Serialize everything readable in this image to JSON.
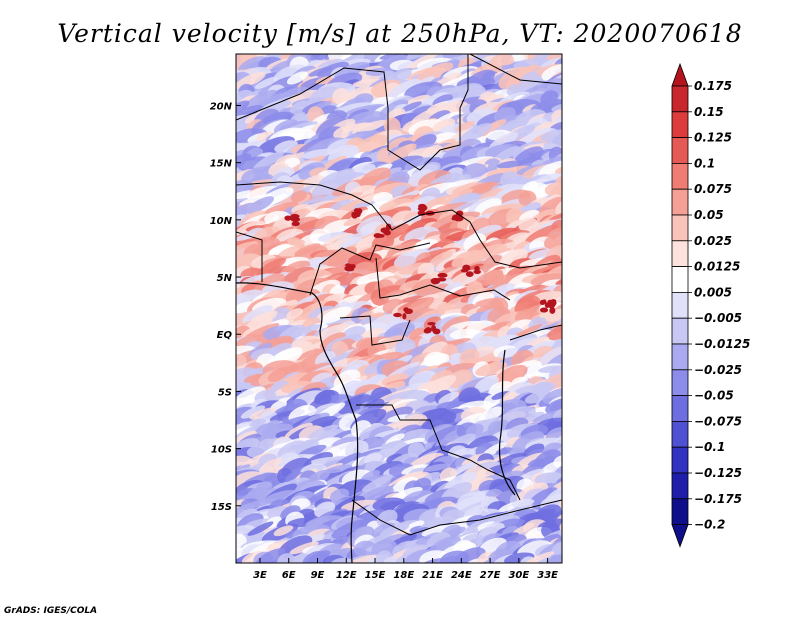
{
  "chart_data": {
    "type": "heatmap",
    "title": "Vertical velocity [m/s] at 250hPa, VT: 2020070618",
    "variable": "Vertical velocity",
    "units": "m/s",
    "level": "250hPa",
    "valid_time": "2020070618",
    "x_axis": {
      "ticks": [
        3,
        6,
        9,
        12,
        15,
        18,
        21,
        24,
        27,
        30,
        33
      ],
      "tick_labels": [
        "3E",
        "6E",
        "9E",
        "12E",
        "15E",
        "18E",
        "21E",
        "24E",
        "27E",
        "30E",
        "33E"
      ],
      "range": [
        0.5,
        34.5
      ]
    },
    "y_axis": {
      "ticks": [
        20,
        15,
        10,
        5,
        0,
        -5,
        -10,
        -15
      ],
      "tick_labels": [
        "20N",
        "15N",
        "10N",
        "5N",
        "EQ",
        "5S",
        "10S",
        "15S"
      ],
      "range": [
        -20,
        24.5
      ]
    },
    "colorbar": {
      "levels": [
        0.175,
        0.15,
        0.125,
        0.1,
        0.075,
        0.05,
        0.025,
        0.0125,
        0.005,
        -0.005,
        -0.0125,
        -0.025,
        -0.05,
        -0.075,
        -0.1,
        -0.125,
        -0.175,
        -0.2
      ],
      "labels": [
        "0.175",
        "0.15",
        "0.125",
        "0.1",
        "0.075",
        "0.05",
        "0.025",
        "0.0125",
        "0.005",
        "−0.005",
        "−0.0125",
        "−0.025",
        "−0.05",
        "−0.075",
        "−0.1",
        "−0.125",
        "−0.175",
        "−0.2"
      ],
      "colors": [
        "#b4141e",
        "#c8282d",
        "#dc3c3c",
        "#e65a55",
        "#f07d73",
        "#f5a096",
        "#fac3b9",
        "#fde1dc",
        "#ffffff",
        "#e1e1fa",
        "#c8c8f5",
        "#aaaaf0",
        "#8c8cea",
        "#6e6ee0",
        "#5050d2",
        "#3232c3",
        "#1e1eaa",
        "#0f0f8c"
      ],
      "extend": "both"
    },
    "regional_pattern": [
      {
        "lat_band": "north of 13N",
        "tendency": "mostly weak descent (blue) with scattered ascent"
      },
      {
        "lat_band": "2N to 12N",
        "tendency": "broad ascent band (red), strongest near 10N and 5N"
      },
      {
        "lat_band": "south of 5S",
        "tendency": "predominantly descent (blue)"
      }
    ]
  },
  "credit": "GrADS: IGES/COLA"
}
